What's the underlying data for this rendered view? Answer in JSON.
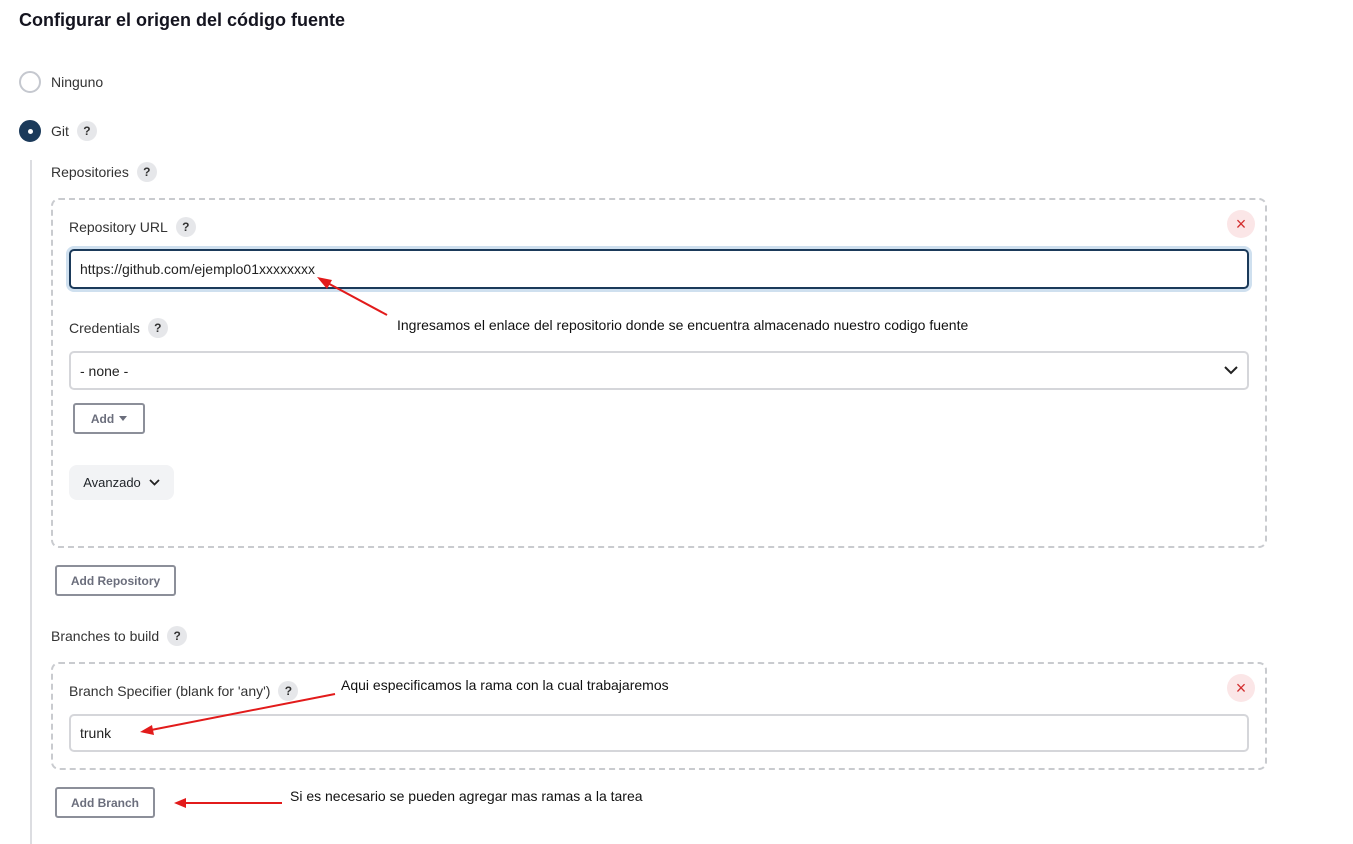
{
  "section_title": "Configurar el origen del código fuente",
  "scm_options": {
    "none_label": "Ninguno",
    "git_label": "Git",
    "help_glyph": "?"
  },
  "repositories": {
    "label": "Repositories",
    "repository_url_label": "Repository URL",
    "repository_url_value": "https://github.com/ejemplo01xxxxxxxx",
    "credentials_label": "Credentials",
    "credentials_selected": "- none -",
    "add_label": "Add",
    "advanced_label": "Avanzado",
    "add_repository_label": "Add Repository",
    "remove_glyph": "×"
  },
  "branches": {
    "label": "Branches to build",
    "specifier_label": "Branch Specifier (blank for 'any')",
    "specifier_value": "trunk",
    "add_branch_label": "Add Branch",
    "remove_glyph": "×"
  },
  "annotations": {
    "repo_note": "Ingresamos el enlace del repositorio donde se encuentra almacenado nuestro codigo fuente",
    "branch_note": "Aqui especificamos la rama con la cual trabajaremos",
    "add_branch_note": "Si es necesario se pueden agregar mas ramas a la tarea",
    "arrow_color": "#e21b1b"
  },
  "icons": {
    "help": "question-mark-icon",
    "remove": "close-icon",
    "dropdown": "chevron-down-icon",
    "add_caret": "caret-down-icon"
  }
}
